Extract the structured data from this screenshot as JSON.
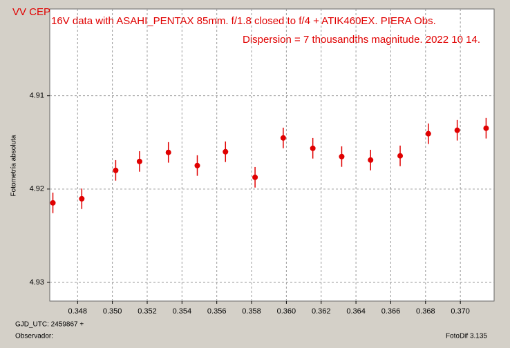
{
  "chart_data": {
    "type": "scatter",
    "object_label": "VV CEP",
    "title": "16V data  with ASAHI_PENTAX 85mm. f/1.8 closed to f/4 + ATIK460EX. PIERA Obs.",
    "subtitle": "Dispersion  =  7 thousandths magnitude.  2022 10 14.",
    "y_label": "Fotometría absoluta",
    "x_label": "GJD_UTC: 2459867 +",
    "observer_label": "Observador:",
    "software_label": "FotoDif 3.135",
    "color": "#e00000",
    "x": [
      0.34658,
      0.34824,
      0.35019,
      0.35156,
      0.35322,
      0.35488,
      0.3565,
      0.3582,
      0.35982,
      0.36152,
      0.36318,
      0.36484,
      0.36654,
      0.36816,
      0.36982,
      0.37148
    ],
    "values": [
      4.92148,
      4.92104,
      4.918,
      4.91704,
      4.91607,
      4.91748,
      4.916,
      4.91874,
      4.91452,
      4.91563,
      4.91652,
      4.91689,
      4.91644,
      4.91407,
      4.9137,
      4.91348
    ],
    "errors": [
      0.0011,
      0.0011,
      0.0011,
      0.0011,
      0.0011,
      0.0011,
      0.0011,
      0.0011,
      0.0011,
      0.0011,
      0.0011,
      0.0011,
      0.0011,
      0.0011,
      0.0011,
      0.0011
    ],
    "xlim": [
      0.3464,
      0.37194
    ],
    "ylim": [
      4.9007,
      4.932
    ],
    "y_inverted": true,
    "grid": true,
    "xticks": [
      0.348,
      {
        "value": 0.35,
        "label": "0.350"
      },
      0.352,
      0.354,
      0.356,
      0.358,
      {
        "value": 0.36,
        "label": "0.360"
      },
      0.362,
      0.364,
      0.366,
      0.368,
      {
        "value": 0.37,
        "label": "0.370"
      }
    ],
    "yticks": [
      4.91,
      4.92,
      4.93
    ]
  }
}
